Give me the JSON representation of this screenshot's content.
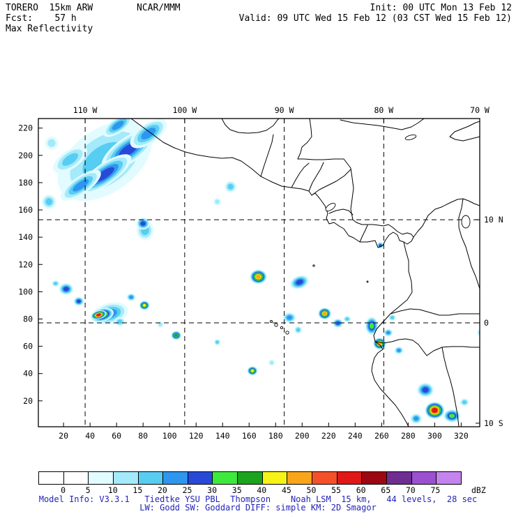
{
  "header": {
    "model": "TORERO  15km ARW",
    "fcst": "Fcst:    57 h",
    "field": "Max Reflectivity",
    "center": "NCAR/MMM",
    "init": "Init: 00 UTC Mon 13 Feb 12",
    "valid": "Valid: 09 UTC Wed 15 Feb 12 (03 CST Wed 15 Feb 12)"
  },
  "map": {
    "x_ticks": [
      20,
      40,
      60,
      80,
      100,
      120,
      140,
      160,
      180,
      200,
      220,
      240,
      260,
      280,
      300,
      320
    ],
    "y_ticks": [
      20,
      40,
      60,
      80,
      100,
      120,
      140,
      160,
      180,
      200,
      220
    ],
    "lon_labels": [
      {
        "text": "110 W",
        "gx": 36.3,
        "line": true
      },
      {
        "text": "100 W",
        "gx": 111.4,
        "line": true
      },
      {
        "text": "90 W",
        "gx": 186.5,
        "line": true
      },
      {
        "text": "80 W",
        "gx": 261.6,
        "line": true
      },
      {
        "text": "70 W",
        "gx": 334,
        "line": false
      }
    ],
    "lat_labels": [
      {
        "text": "10 N",
        "gy": 152.8,
        "line": true
      },
      {
        "text": "0",
        "gy": 77.2,
        "line": true
      },
      {
        "text": "10 S",
        "gy": 3.6,
        "line": false
      }
    ]
  },
  "colorbar": {
    "tick_labels": [
      "0",
      "5",
      "10",
      "15",
      "20",
      "25",
      "30",
      "35",
      "40",
      "45",
      "50",
      "55",
      "60",
      "65",
      "70",
      "75"
    ],
    "unit": "dBZ",
    "cell_colors": [
      "#ffffff",
      "#ffffff",
      "#e2fbff",
      "#a4eafa",
      "#57cdf2",
      "#2f96ef",
      "#2849d8",
      "#3ee93e",
      "#1ea31e",
      "#f7f316",
      "#f9a51a",
      "#f4512a",
      "#e01818",
      "#9c0712",
      "#6f2d91",
      "#9b50d0",
      "#c583ee"
    ]
  },
  "footer": {
    "line1": "Model Info: V3.3.1   Tiedtke YSU PBL  Thompson    Noah LSM  15 km,   44 levels,  28 sec",
    "line2": "LW: Godd SW: Goddard DIFF: simple KM: 2D Smagor"
  },
  "colors": {
    "footer_text": "#2323b8",
    "line": "#000000"
  },
  "chart_data": {
    "type": "heatmap",
    "title": "Max Reflectivity",
    "unit": "dBZ",
    "x_range": [
      1,
      334
    ],
    "y_range": [
      1,
      227
    ],
    "levels": [
      0,
      5,
      10,
      15,
      20,
      25,
      30,
      35,
      40,
      45,
      50,
      55,
      60,
      65,
      70,
      75
    ],
    "legend_position": "bottom",
    "grid": "dashed lat-lon every 10 degrees",
    "cell_format": [
      "grid_x",
      "grid_y",
      "radius_x",
      "radius_y",
      "rotation_deg",
      "max_dbz"
    ],
    "cells": [
      [
        51,
        196,
        40,
        24,
        -35,
        15
      ],
      [
        69,
        204,
        24,
        9.5,
        -35,
        25
      ],
      [
        51,
        186,
        24,
        8,
        -35,
        25
      ],
      [
        33,
        178,
        18,
        6.5,
        -35,
        20
      ],
      [
        25,
        197,
        15,
        7,
        -35,
        15
      ],
      [
        84,
        216,
        16,
        7.5,
        -35,
        20
      ],
      [
        61,
        222,
        13,
        5.5,
        -35,
        20
      ],
      [
        11,
        209,
        5,
        5,
        0,
        10
      ],
      [
        9,
        166,
        5.5,
        5.5,
        0,
        15
      ],
      [
        81.5,
        145,
        6.5,
        7.5,
        0,
        15
      ],
      [
        80,
        150,
        5,
        4.5,
        0,
        25
      ],
      [
        146,
        177,
        4.5,
        4.5,
        0,
        15
      ],
      [
        136,
        166,
        3,
        3,
        0,
        10
      ],
      [
        167,
        111,
        6.5,
        5.5,
        0,
        45
      ],
      [
        198,
        107,
        7.5,
        5,
        -20,
        25
      ],
      [
        190.5,
        81,
        5,
        4,
        0,
        20
      ],
      [
        197,
        72,
        3,
        3,
        0,
        15
      ],
      [
        217,
        84,
        5,
        4.5,
        0,
        45
      ],
      [
        227,
        77,
        4,
        3.5,
        0,
        25
      ],
      [
        234,
        80,
        3,
        2.5,
        0,
        15
      ],
      [
        55,
        84,
        14,
        8,
        -15,
        20
      ],
      [
        49,
        83,
        9,
        5,
        -15,
        40
      ],
      [
        46.5,
        83,
        6,
        3.2,
        -15,
        55
      ],
      [
        62.5,
        78,
        4,
        3.5,
        0,
        15
      ],
      [
        22,
        102,
        5.5,
        4.5,
        0,
        25
      ],
      [
        31.5,
        93,
        4,
        3.5,
        0,
        25
      ],
      [
        14,
        106,
        3,
        2.5,
        0,
        15
      ],
      [
        71,
        96,
        3.5,
        3,
        0,
        20
      ],
      [
        81,
        90,
        4,
        3.5,
        0,
        40
      ],
      [
        93,
        76,
        2.5,
        2.5,
        0,
        10
      ],
      [
        105,
        68,
        4,
        3.5,
        0,
        35
      ],
      [
        136,
        63,
        2.5,
        2.5,
        0,
        15
      ],
      [
        162.5,
        42,
        4,
        3.5,
        0,
        40
      ],
      [
        177,
        48,
        2.5,
        2.5,
        0,
        10
      ],
      [
        259,
        134,
        2.5,
        2.5,
        0,
        25
      ],
      [
        252.5,
        75,
        5,
        7,
        0,
        30
      ],
      [
        258.5,
        62,
        5,
        4.5,
        0,
        45
      ],
      [
        265,
        70,
        3.5,
        3,
        0,
        20
      ],
      [
        268,
        81,
        3,
        2.5,
        0,
        15
      ],
      [
        273,
        57,
        3.5,
        3,
        0,
        20
      ],
      [
        293,
        28,
        6.5,
        5.5,
        0,
        25
      ],
      [
        300,
        13,
        7.5,
        6.5,
        0,
        55
      ],
      [
        313,
        9,
        6.5,
        5,
        0,
        30
      ],
      [
        286,
        7,
        4.5,
        4,
        0,
        20
      ],
      [
        322.5,
        19,
        3.5,
        3,
        0,
        15
      ],
      [
        335,
        70,
        3,
        3,
        0,
        15
      ]
    ]
  }
}
